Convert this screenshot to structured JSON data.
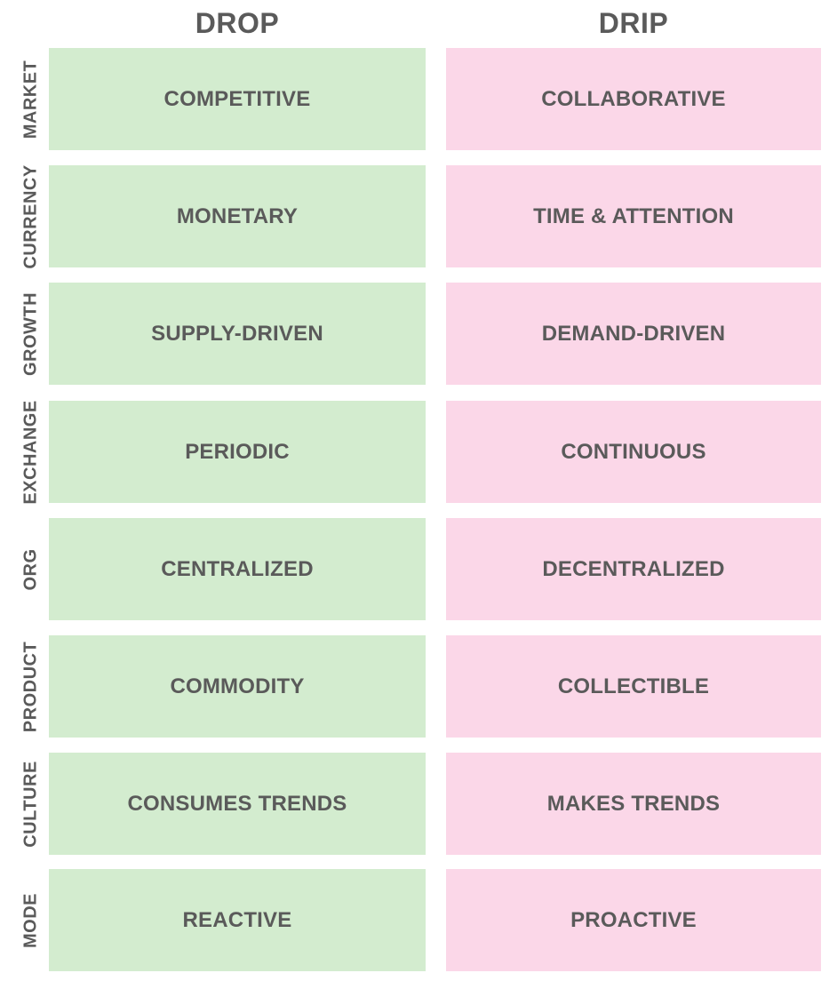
{
  "columns": {
    "drop": "DROP",
    "drip": "DRIP"
  },
  "rows": [
    {
      "label": "MARKET",
      "drop": "COMPETITIVE",
      "drip": "COLLABORATIVE"
    },
    {
      "label": "CURRENCY",
      "drop": "MONETARY",
      "drip": "TIME & ATTENTION"
    },
    {
      "label": "GROWTH",
      "drop": "SUPPLY-DRIVEN",
      "drip": "DEMAND-DRIVEN"
    },
    {
      "label": "EXCHANGE",
      "drop": "PERIODIC",
      "drip": "CONTINUOUS"
    },
    {
      "label": "ORG",
      "drop": "CENTRALIZED",
      "drip": "DECENTRALIZED"
    },
    {
      "label": "PRODUCT",
      "drop": "COMMODITY",
      "drip": "COLLECTIBLE"
    },
    {
      "label": "CULTURE",
      "drop": "CONSUMES TRENDS",
      "drip": "MAKES TRENDS"
    },
    {
      "label": "MODE",
      "drop": "REACTIVE",
      "drip": "PROACTIVE"
    }
  ],
  "colors": {
    "drop_fill": "#d3eccf",
    "drip_fill": "#fbd7e8",
    "text": "#5a5a5a"
  }
}
